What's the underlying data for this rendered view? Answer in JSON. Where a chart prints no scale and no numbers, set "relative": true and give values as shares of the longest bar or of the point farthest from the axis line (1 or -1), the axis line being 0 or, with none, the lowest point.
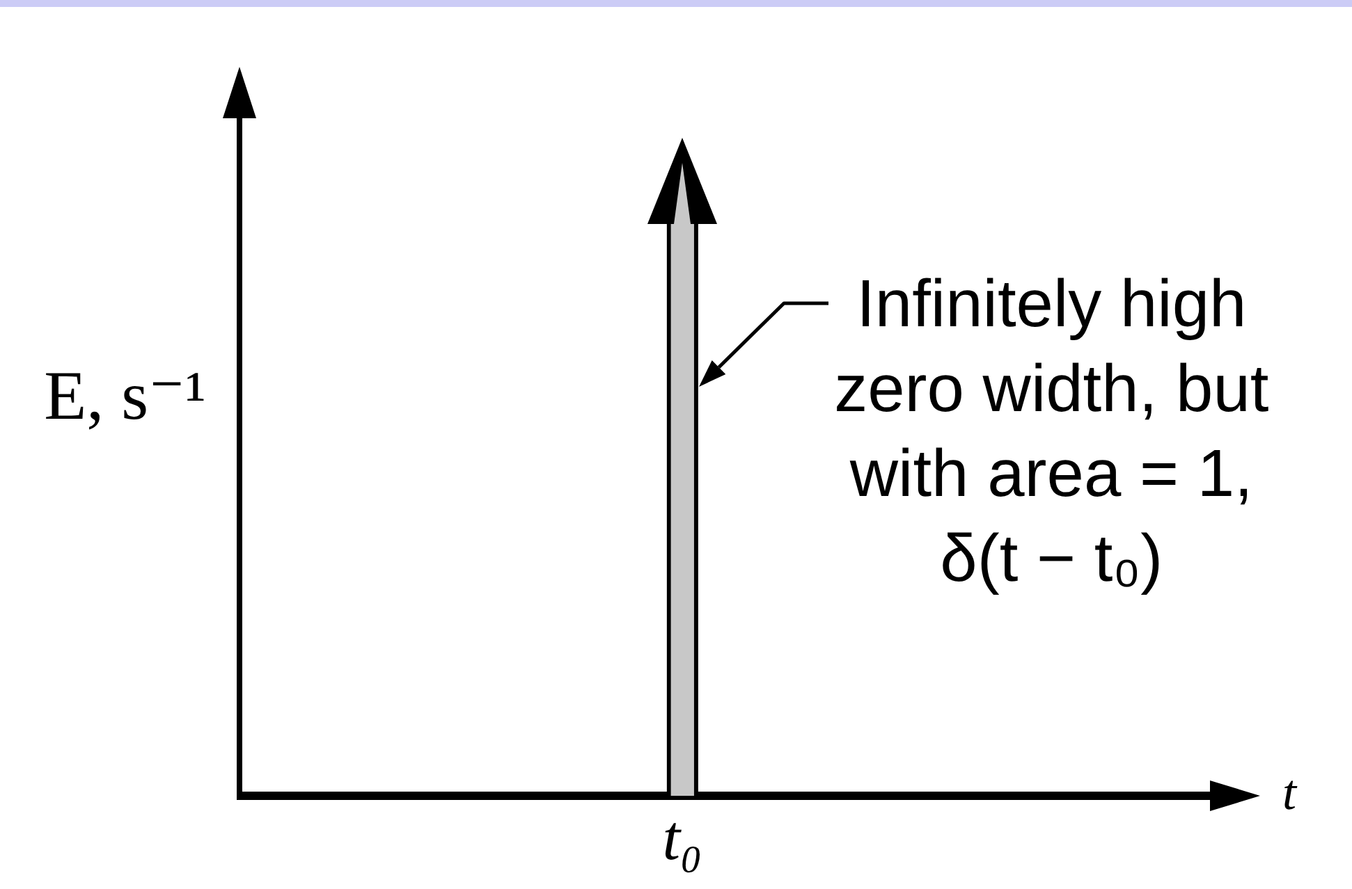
{
  "chart_data": {
    "type": "bar",
    "relative": true,
    "ylabel": "E, s⁻¹",
    "categories": [
      "t₀"
    ],
    "values": [
      1
    ],
    "color": "#c8c8c8",
    "tick_labels": "x",
    "annotations": [
      "Infinitely high\nzero width, but\nwith area = 1,\nδ(t − t₀)",
      "t"
    ]
  }
}
